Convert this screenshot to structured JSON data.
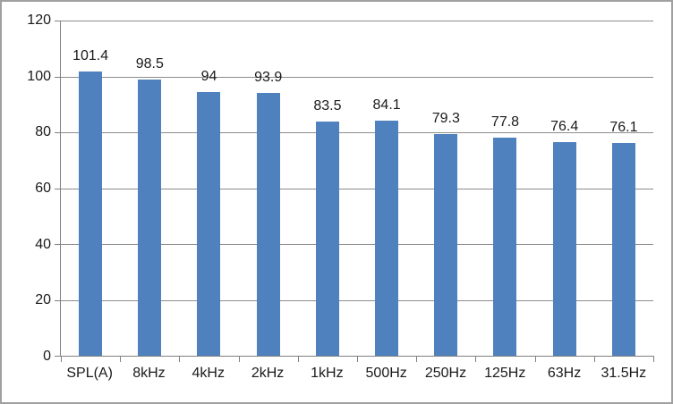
{
  "chart_data": {
    "type": "bar",
    "categories": [
      "SPL(A)",
      "8kHz",
      "4kHz",
      "2kHz",
      "1kHz",
      "500Hz",
      "250Hz",
      "125Hz",
      "63Hz",
      "31.5Hz"
    ],
    "values": [
      101.4,
      98.5,
      94,
      93.9,
      83.5,
      84.1,
      79.3,
      77.8,
      76.4,
      76.1
    ],
    "value_labels": [
      "101.4",
      "98.5",
      "94",
      "93.9",
      "83.5",
      "84.1",
      "79.3",
      "77.8",
      "76.4",
      "76.1"
    ],
    "title": "",
    "xlabel": "",
    "ylabel": "",
    "ylim": [
      0,
      120
    ],
    "yticks": [
      0,
      20,
      40,
      60,
      80,
      100,
      120
    ],
    "grid": true,
    "legend": false,
    "colors": {
      "bar_fill": "#4e81bd",
      "gridline": "#8c8c8c",
      "axis_line": "#7f7f7f",
      "text": "#1a1a1a",
      "frame_border": "#a0a0a0",
      "background": "#ffffff"
    }
  }
}
